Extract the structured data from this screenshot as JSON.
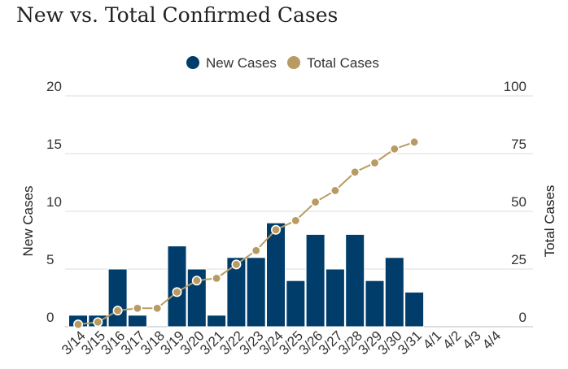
{
  "title": "New vs. Total Confirmed Cases",
  "chart_data": {
    "type": "bar+line",
    "title": "New vs. Total Confirmed Cases",
    "categories": [
      "3/14",
      "3/15",
      "3/16",
      "3/17",
      "3/18",
      "3/19",
      "3/20",
      "3/21",
      "3/22",
      "3/23",
      "3/24",
      "3/25",
      "3/26",
      "3/27",
      "3/28",
      "3/29",
      "3/30",
      "3/31",
      "4/1",
      "4/2",
      "4/3",
      "4/4"
    ],
    "series": [
      {
        "name": "New Cases",
        "type": "bar",
        "axis": "left",
        "color": "#003d6b",
        "values": [
          1,
          1,
          5,
          1,
          0,
          7,
          5,
          1,
          6,
          6,
          9,
          4,
          8,
          5,
          8,
          4,
          6,
          3,
          null,
          null,
          null,
          null
        ]
      },
      {
        "name": "Total Cases",
        "type": "line",
        "axis": "right",
        "color": "#b89b62",
        "values": [
          1,
          2,
          7,
          8,
          8,
          15,
          20,
          21,
          27,
          33,
          42,
          46,
          54,
          59,
          67,
          71,
          77,
          80,
          null,
          null,
          null,
          null
        ]
      }
    ],
    "left_axis": {
      "label": "New Cases",
      "ylim": [
        0,
        20
      ],
      "ticks": [
        0,
        5,
        10,
        15,
        20
      ]
    },
    "right_axis": {
      "label": "Total Cases",
      "ylim": [
        0,
        100
      ],
      "ticks": [
        0,
        25,
        50,
        75,
        100
      ]
    },
    "legend_position": "top-center",
    "grid": true
  }
}
